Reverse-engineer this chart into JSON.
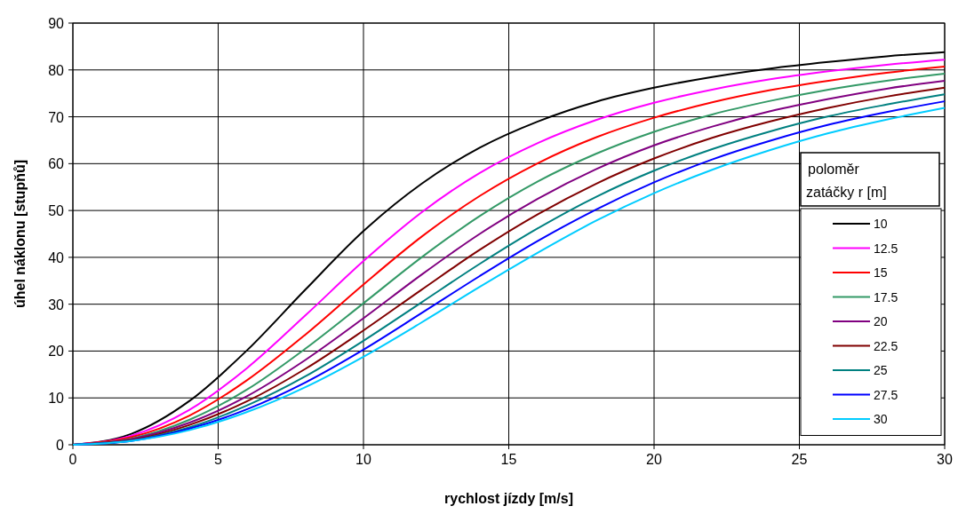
{
  "chart_data": {
    "type": "line",
    "xlabel": "rychlost jízdy [m/s]",
    "ylabel": "úhel náklonu [stupňů]",
    "legend_title": "poloměr zatáčky r [m]",
    "x": [
      0,
      2,
      4,
      6,
      8,
      10,
      12,
      14,
      16,
      18,
      20,
      22,
      24,
      26,
      28,
      30
    ],
    "xlim": [
      0,
      30
    ],
    "xticks": [
      0,
      5,
      10,
      15,
      20,
      25,
      30
    ],
    "ylim": [
      0,
      90
    ],
    "yticks": [
      0,
      10,
      20,
      30,
      40,
      50,
      60,
      70,
      80,
      90
    ],
    "grid": true,
    "legend": "right",
    "marker": "none",
    "line_style": "solid",
    "series": [
      {
        "name": "10",
        "color": "#000000",
        "values": [
          0,
          2.3,
          9.3,
          20.2,
          33.1,
          45.6,
          55.7,
          63.4,
          69.0,
          73.2,
          76.2,
          78.5,
          80.3,
          81.7,
          82.9,
          83.8
        ]
      },
      {
        "name": "12.5",
        "color": "#ff00ff",
        "values": [
          0,
          1.9,
          7.4,
          16.4,
          27.6,
          39.2,
          49.6,
          58.0,
          64.4,
          69.3,
          73.0,
          75.8,
          78.0,
          79.7,
          81.1,
          82.2
        ]
      },
      {
        "name": "15",
        "color": "#ff0000",
        "values": [
          0,
          1.6,
          6.2,
          13.8,
          23.5,
          34.2,
          44.4,
          53.1,
          60.1,
          65.6,
          69.8,
          73.1,
          75.7,
          77.7,
          79.4,
          80.7
        ]
      },
      {
        "name": "17.5",
        "color": "#339966",
        "values": [
          0,
          1.3,
          5.3,
          11.8,
          20.5,
          30.2,
          40.0,
          48.8,
          56.2,
          62.1,
          66.8,
          70.5,
          73.4,
          75.8,
          77.7,
          79.2
        ]
      },
      {
        "name": "20",
        "color": "#800080",
        "values": [
          0,
          1.2,
          4.7,
          10.4,
          18.1,
          27.0,
          36.3,
          45.0,
          52.5,
          58.8,
          63.9,
          67.9,
          71.2,
          73.8,
          76.0,
          77.7
        ]
      },
      {
        "name": "22.5",
        "color": "#800000",
        "values": [
          0,
          1.0,
          4.2,
          9.3,
          16.2,
          24.4,
          33.1,
          41.6,
          49.2,
          55.7,
          61.1,
          65.5,
          69.0,
          71.9,
          74.3,
          76.2
        ]
      },
      {
        "name": "25",
        "color": "#008080",
        "values": [
          0,
          0.9,
          3.7,
          8.4,
          14.6,
          22.2,
          30.4,
          38.6,
          46.2,
          52.9,
          58.5,
          63.1,
          66.9,
          70.1,
          72.6,
          74.8
        ]
      },
      {
        "name": "27.5",
        "color": "#0000ff",
        "values": [
          0,
          0.8,
          3.4,
          7.6,
          13.3,
          20.3,
          28.1,
          36.0,
          43.5,
          50.2,
          56.0,
          60.9,
          64.9,
          68.3,
          71.0,
          73.3
        ]
      },
      {
        "name": "30",
        "color": "#00ccff",
        "values": [
          0,
          0.8,
          3.1,
          7.0,
          12.3,
          18.8,
          26.1,
          33.7,
          41.0,
          47.8,
          53.7,
          58.7,
          62.9,
          66.5,
          69.4,
          71.9
        ]
      }
    ]
  }
}
